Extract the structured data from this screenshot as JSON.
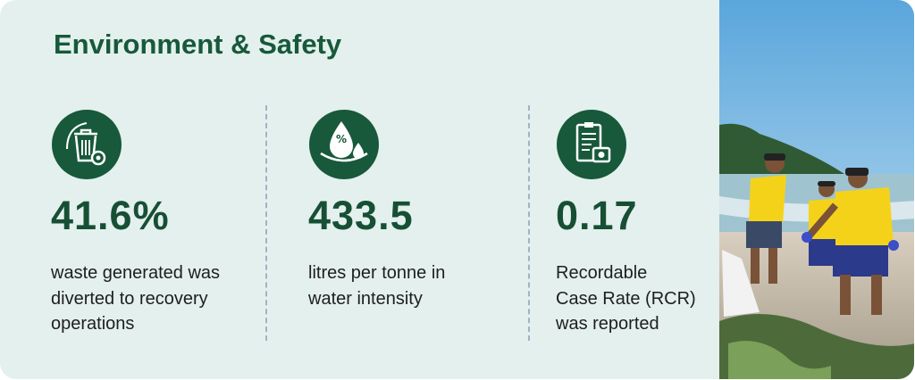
{
  "header": {
    "title": "Environment & Safety"
  },
  "stats": [
    {
      "value": "41.6%",
      "description": [
        "waste generated was",
        "diverted to recovery",
        "operations"
      ]
    },
    {
      "value": "433.5",
      "description": [
        "litres per tonne in",
        "water intensity"
      ]
    },
    {
      "value": "0.17",
      "description": [
        "Recordable",
        "Case Rate (RCR)",
        "was reported"
      ]
    }
  ]
}
